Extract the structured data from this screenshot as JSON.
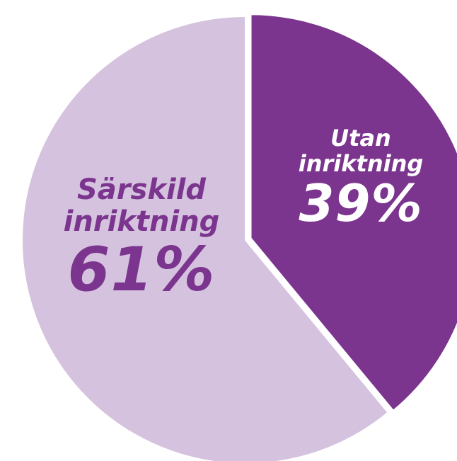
{
  "chart_data": {
    "type": "pie",
    "start_angle_deg": 0,
    "direction": "clockwise",
    "slices": [
      {
        "label_lines": [
          "Utan",
          "inriktning"
        ],
        "value": 39,
        "value_label": "39%",
        "color": "#7b358f",
        "label_color": "#ffffff",
        "exploded": true
      },
      {
        "label_lines": [
          "Särskild",
          "inriktning"
        ],
        "value": 61,
        "value_label": "61%",
        "color": "#d5c2de",
        "label_color": "#7b358f",
        "exploded": false
      }
    ]
  }
}
